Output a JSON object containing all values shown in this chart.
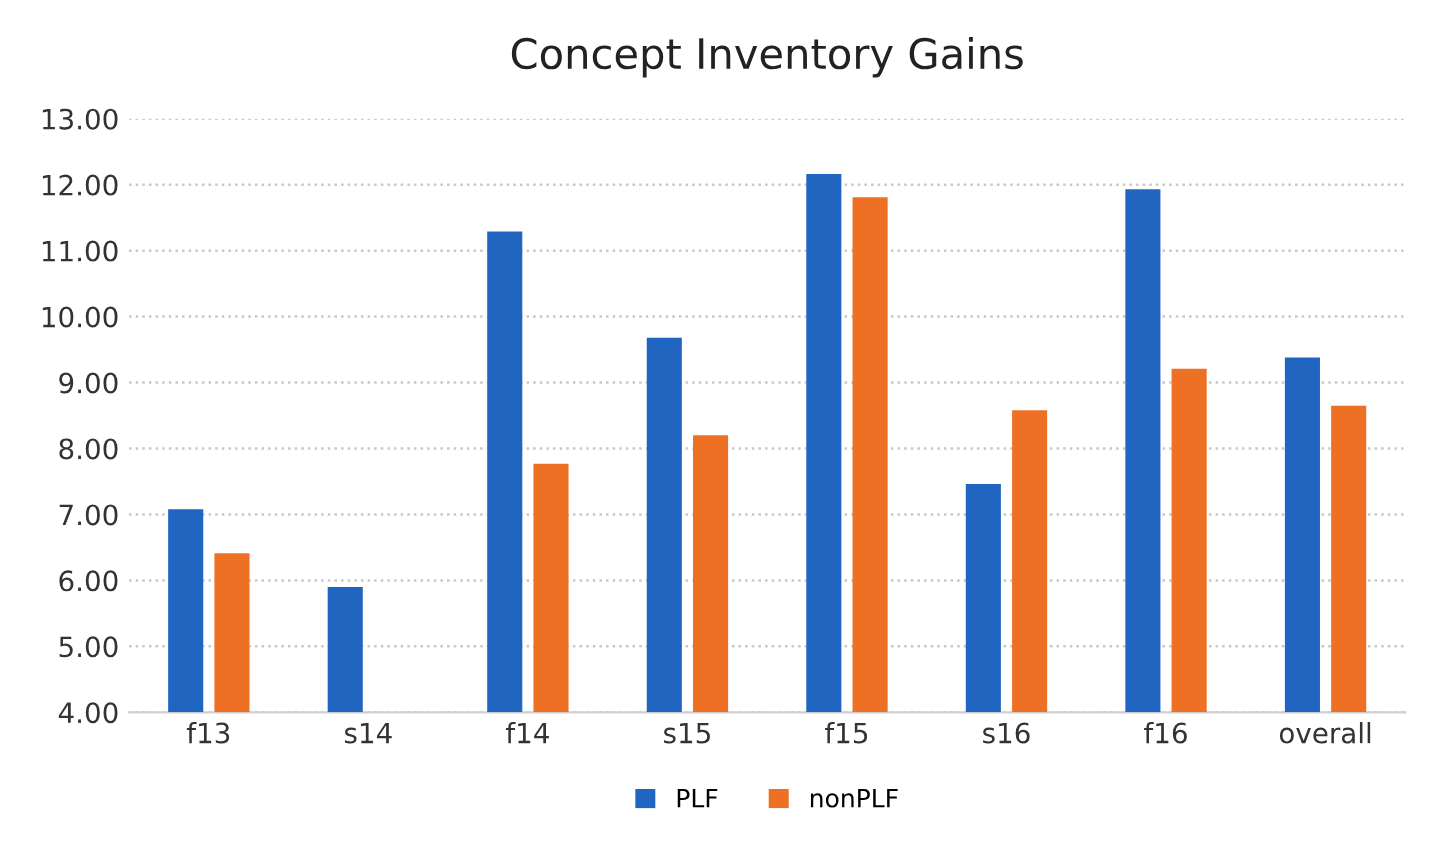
{
  "chart_data": {
    "type": "bar",
    "title": "Concept Inventory Gains",
    "categories": [
      "f13",
      "s14",
      "f14",
      "s15",
      "f15",
      "s16",
      "f16",
      "overall"
    ],
    "series": [
      {
        "name": "PLF",
        "color": "#2066c0",
        "values": [
          7.08,
          5.9,
          11.29,
          9.68,
          12.16,
          7.46,
          11.93,
          9.38
        ]
      },
      {
        "name": "nonPLF",
        "color": "#ee7024",
        "values": [
          6.41,
          null,
          7.77,
          8.2,
          11.81,
          8.58,
          9.21,
          8.65
        ]
      }
    ],
    "ylim": [
      4,
      13
    ],
    "yticks": [
      {
        "value": 4,
        "label": "4.00"
      },
      {
        "value": 5,
        "label": "5.00"
      },
      {
        "value": 6,
        "label": "6.00"
      },
      {
        "value": 7,
        "label": "7.00"
      },
      {
        "value": 8,
        "label": "8.00"
      },
      {
        "value": 9,
        "label": "9.00"
      },
      {
        "value": 10,
        "label": "10.00"
      },
      {
        "value": 11,
        "label": "11.00"
      },
      {
        "value": 12,
        "label": "12.00"
      },
      {
        "value": 13,
        "label": "13.00"
      }
    ],
    "grid": "y",
    "legend": "bottom"
  }
}
